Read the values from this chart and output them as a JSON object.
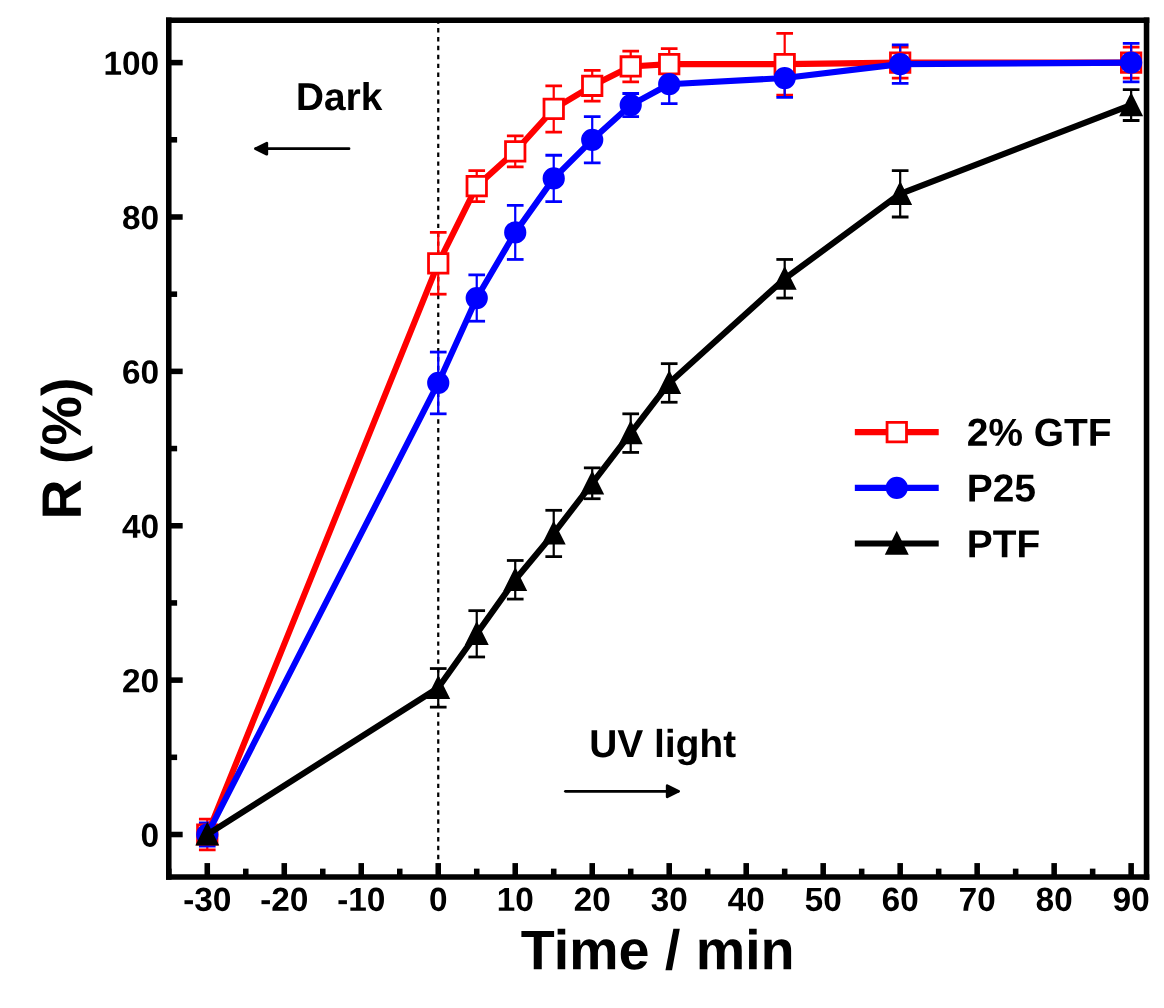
{
  "chart_data": {
    "type": "line",
    "xlabel": "Time / min",
    "ylabel": "R (%)",
    "x": [
      -30,
      0,
      5,
      10,
      15,
      20,
      25,
      30,
      45,
      60,
      90
    ],
    "series": [
      {
        "name": "2% GTF",
        "color": "#ff0000",
        "marker": "square",
        "values": [
          0,
          74,
          84,
          88.5,
          94,
          97,
          99.5,
          99.8,
          99.8,
          100,
          100
        ],
        "errors": [
          2,
          4,
          2,
          2,
          3,
          2,
          2,
          2,
          4,
          2,
          2
        ]
      },
      {
        "name": "P25",
        "color": "#0000ff",
        "marker": "circle",
        "values": [
          0,
          58.5,
          69.5,
          78,
          85,
          90,
          94.5,
          97.2,
          98,
          99.8,
          100
        ],
        "errors": [
          1.5,
          4,
          3,
          3.5,
          3,
          3,
          1.5,
          2.5,
          2.5,
          2.5,
          2.5
        ]
      },
      {
        "name": "PTF",
        "color": "#000000",
        "marker": "triangle",
        "values": [
          0,
          19,
          26,
          33,
          39,
          45.5,
          52,
          58.5,
          72,
          83,
          94.5
        ],
        "errors": [
          1,
          2.5,
          3,
          2.5,
          3,
          2,
          2.5,
          2.5,
          2.5,
          3,
          2
        ]
      }
    ],
    "xlim": [
      -35,
      92
    ],
    "ylim": [
      -5.5,
      105.5
    ],
    "xticks": [
      -30,
      -20,
      -10,
      0,
      10,
      20,
      30,
      40,
      50,
      60,
      70,
      80,
      90
    ],
    "yticks": [
      0,
      20,
      40,
      60,
      80,
      100
    ],
    "ref_lines": [
      {
        "axis": "x",
        "value": 0,
        "color": "#000000",
        "line_style": "dashed"
      }
    ],
    "annotations": [
      "Dark",
      "UV light"
    ],
    "legend": "right",
    "grid": false,
    "line_style": "solid"
  }
}
